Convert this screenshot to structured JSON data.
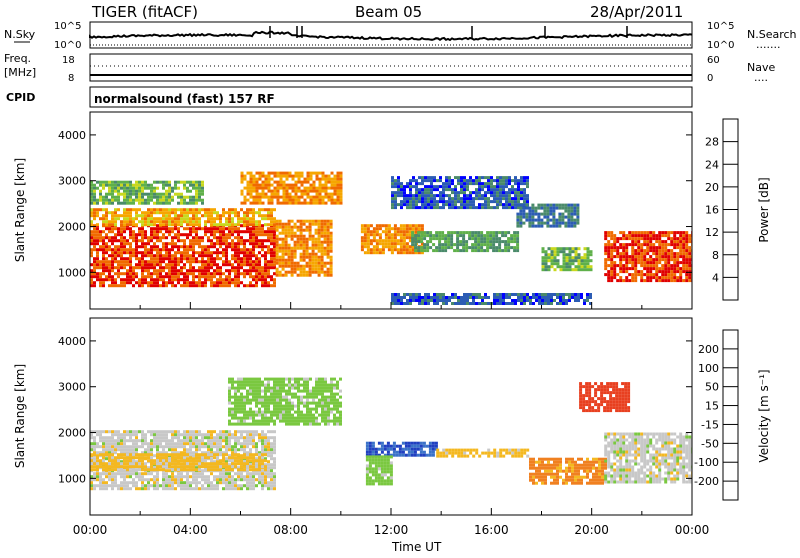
{
  "header": {
    "radar": "TIGER (fitACF)",
    "beam": "Beam 05",
    "date": "28/Apr/2011"
  },
  "noise_panel": {
    "left_label": "N.Sky",
    "right_label": "N.Search",
    "left_ticks": [
      "10^5",
      "10^0"
    ],
    "right_ticks": [
      "10^5",
      "10^0"
    ],
    "legend_dots": "......."
  },
  "freq_panel": {
    "left_label_1": "Freq.",
    "left_label_2": "[MHz]",
    "left_label_3": "CPID",
    "right_label": "Nave",
    "left_ticks": [
      "18",
      "8"
    ],
    "right_ticks": [
      "60",
      "0"
    ],
    "legend_dots": "...."
  },
  "mode_label": "normalsound (fast) 157 RF",
  "power_panel": {
    "ylabel": "Slant Range [km]",
    "yticks": [
      "1000",
      "2000",
      "3000",
      "4000"
    ],
    "colorbar": {
      "label": "Power [dB]",
      "ticks": [
        "4",
        "8",
        "12",
        "16",
        "20",
        "24",
        "28"
      ],
      "colors": [
        "#0000ff",
        "#2c5cb4",
        "#4a8a6a",
        "#5fb04a",
        "#c8d81e",
        "#f6a600",
        "#f06a00",
        "#e00000"
      ]
    }
  },
  "velocity_panel": {
    "ylabel": "Slant Range [km]",
    "yticks": [
      "1000",
      "2000",
      "3000",
      "4000"
    ],
    "colorbar": {
      "label": "Velocity [m s⁻¹]",
      "ticks": [
        "200",
        "100",
        "50",
        "15",
        "-15",
        "-50",
        "-100",
        "-200"
      ],
      "colors": [
        "#2040c0",
        "#3a72c8",
        "#2f8a4a",
        "#7ac840",
        "#c8c8c8",
        "#f4b820",
        "#f08020",
        "#e84020",
        "#e00000"
      ]
    }
  },
  "time_axis": {
    "xlabel": "Time UT",
    "ticks": [
      "00:00",
      "04:00",
      "08:00",
      "12:00",
      "16:00",
      "20:00",
      "00:00"
    ]
  },
  "chart_data": {
    "type": "heatmap",
    "title": "TIGER (fitACF) Beam 05 28/Apr/2011",
    "xlabel": "Time UT",
    "ylabel": "Slant Range [km]",
    "xlim_hours": [
      0,
      24
    ],
    "ylim_km": [
      200,
      4500
    ],
    "power_regions": [
      {
        "t0": 0,
        "t1": 7.4,
        "r0": 700,
        "r1": 2050,
        "dB": 28
      },
      {
        "t0": 0,
        "t1": 7.4,
        "r0": 2050,
        "r1": 2400,
        "dB": 22
      },
      {
        "t0": 7.4,
        "t1": 9.6,
        "r0": 950,
        "r1": 2150,
        "dB": 24
      },
      {
        "t0": 6.0,
        "t1": 10.0,
        "r0": 2500,
        "r1": 3200,
        "dB": 24
      },
      {
        "t0": 0,
        "t1": 4.5,
        "r0": 2500,
        "r1": 3000,
        "dB": 14
      },
      {
        "t0": 10.8,
        "t1": 13.2,
        "r0": 1450,
        "r1": 2050,
        "dB": 24
      },
      {
        "t0": 12.8,
        "t1": 17.0,
        "r0": 1450,
        "r1": 1900,
        "dB": 12
      },
      {
        "t0": 12.0,
        "t1": 17.5,
        "r0": 2400,
        "r1": 3100,
        "dB": 6
      },
      {
        "t0": 17.0,
        "t1": 19.5,
        "r0": 2000,
        "r1": 2500,
        "dB": 8
      },
      {
        "t0": 18.0,
        "t1": 20.0,
        "r0": 1050,
        "r1": 1550,
        "dB": 14
      },
      {
        "t0": 20.5,
        "t1": 24,
        "r0": 800,
        "r1": 1900,
        "dB": 28
      },
      {
        "t0": 12.0,
        "t1": 20.0,
        "r0": 300,
        "r1": 550,
        "dB": 6
      }
    ],
    "velocity_regions": [
      {
        "t0": 0,
        "t1": 7.4,
        "r0": 800,
        "r1": 2050,
        "v": 0
      },
      {
        "t0": 0,
        "t1": 7.0,
        "r0": 1200,
        "r1": 1550,
        "v": -30
      },
      {
        "t0": 5.5,
        "t1": 10.0,
        "r0": 2200,
        "r1": 3200,
        "v": 30
      },
      {
        "t0": 11.0,
        "t1": 13.8,
        "r0": 1500,
        "r1": 1800,
        "v": 200
      },
      {
        "t0": 11.0,
        "t1": 12.0,
        "r0": 900,
        "r1": 1500,
        "v": 30
      },
      {
        "t0": 13.8,
        "t1": 17.5,
        "r0": 1500,
        "r1": 1650,
        "v": -30
      },
      {
        "t0": 17.5,
        "t1": 20.5,
        "r0": 900,
        "r1": 1450,
        "v": -60
      },
      {
        "t0": 20.5,
        "t1": 24,
        "r0": 900,
        "r1": 2000,
        "v": 0
      },
      {
        "t0": 19.5,
        "t1": 21.5,
        "r0": 2500,
        "r1": 3100,
        "v": -150
      }
    ]
  }
}
